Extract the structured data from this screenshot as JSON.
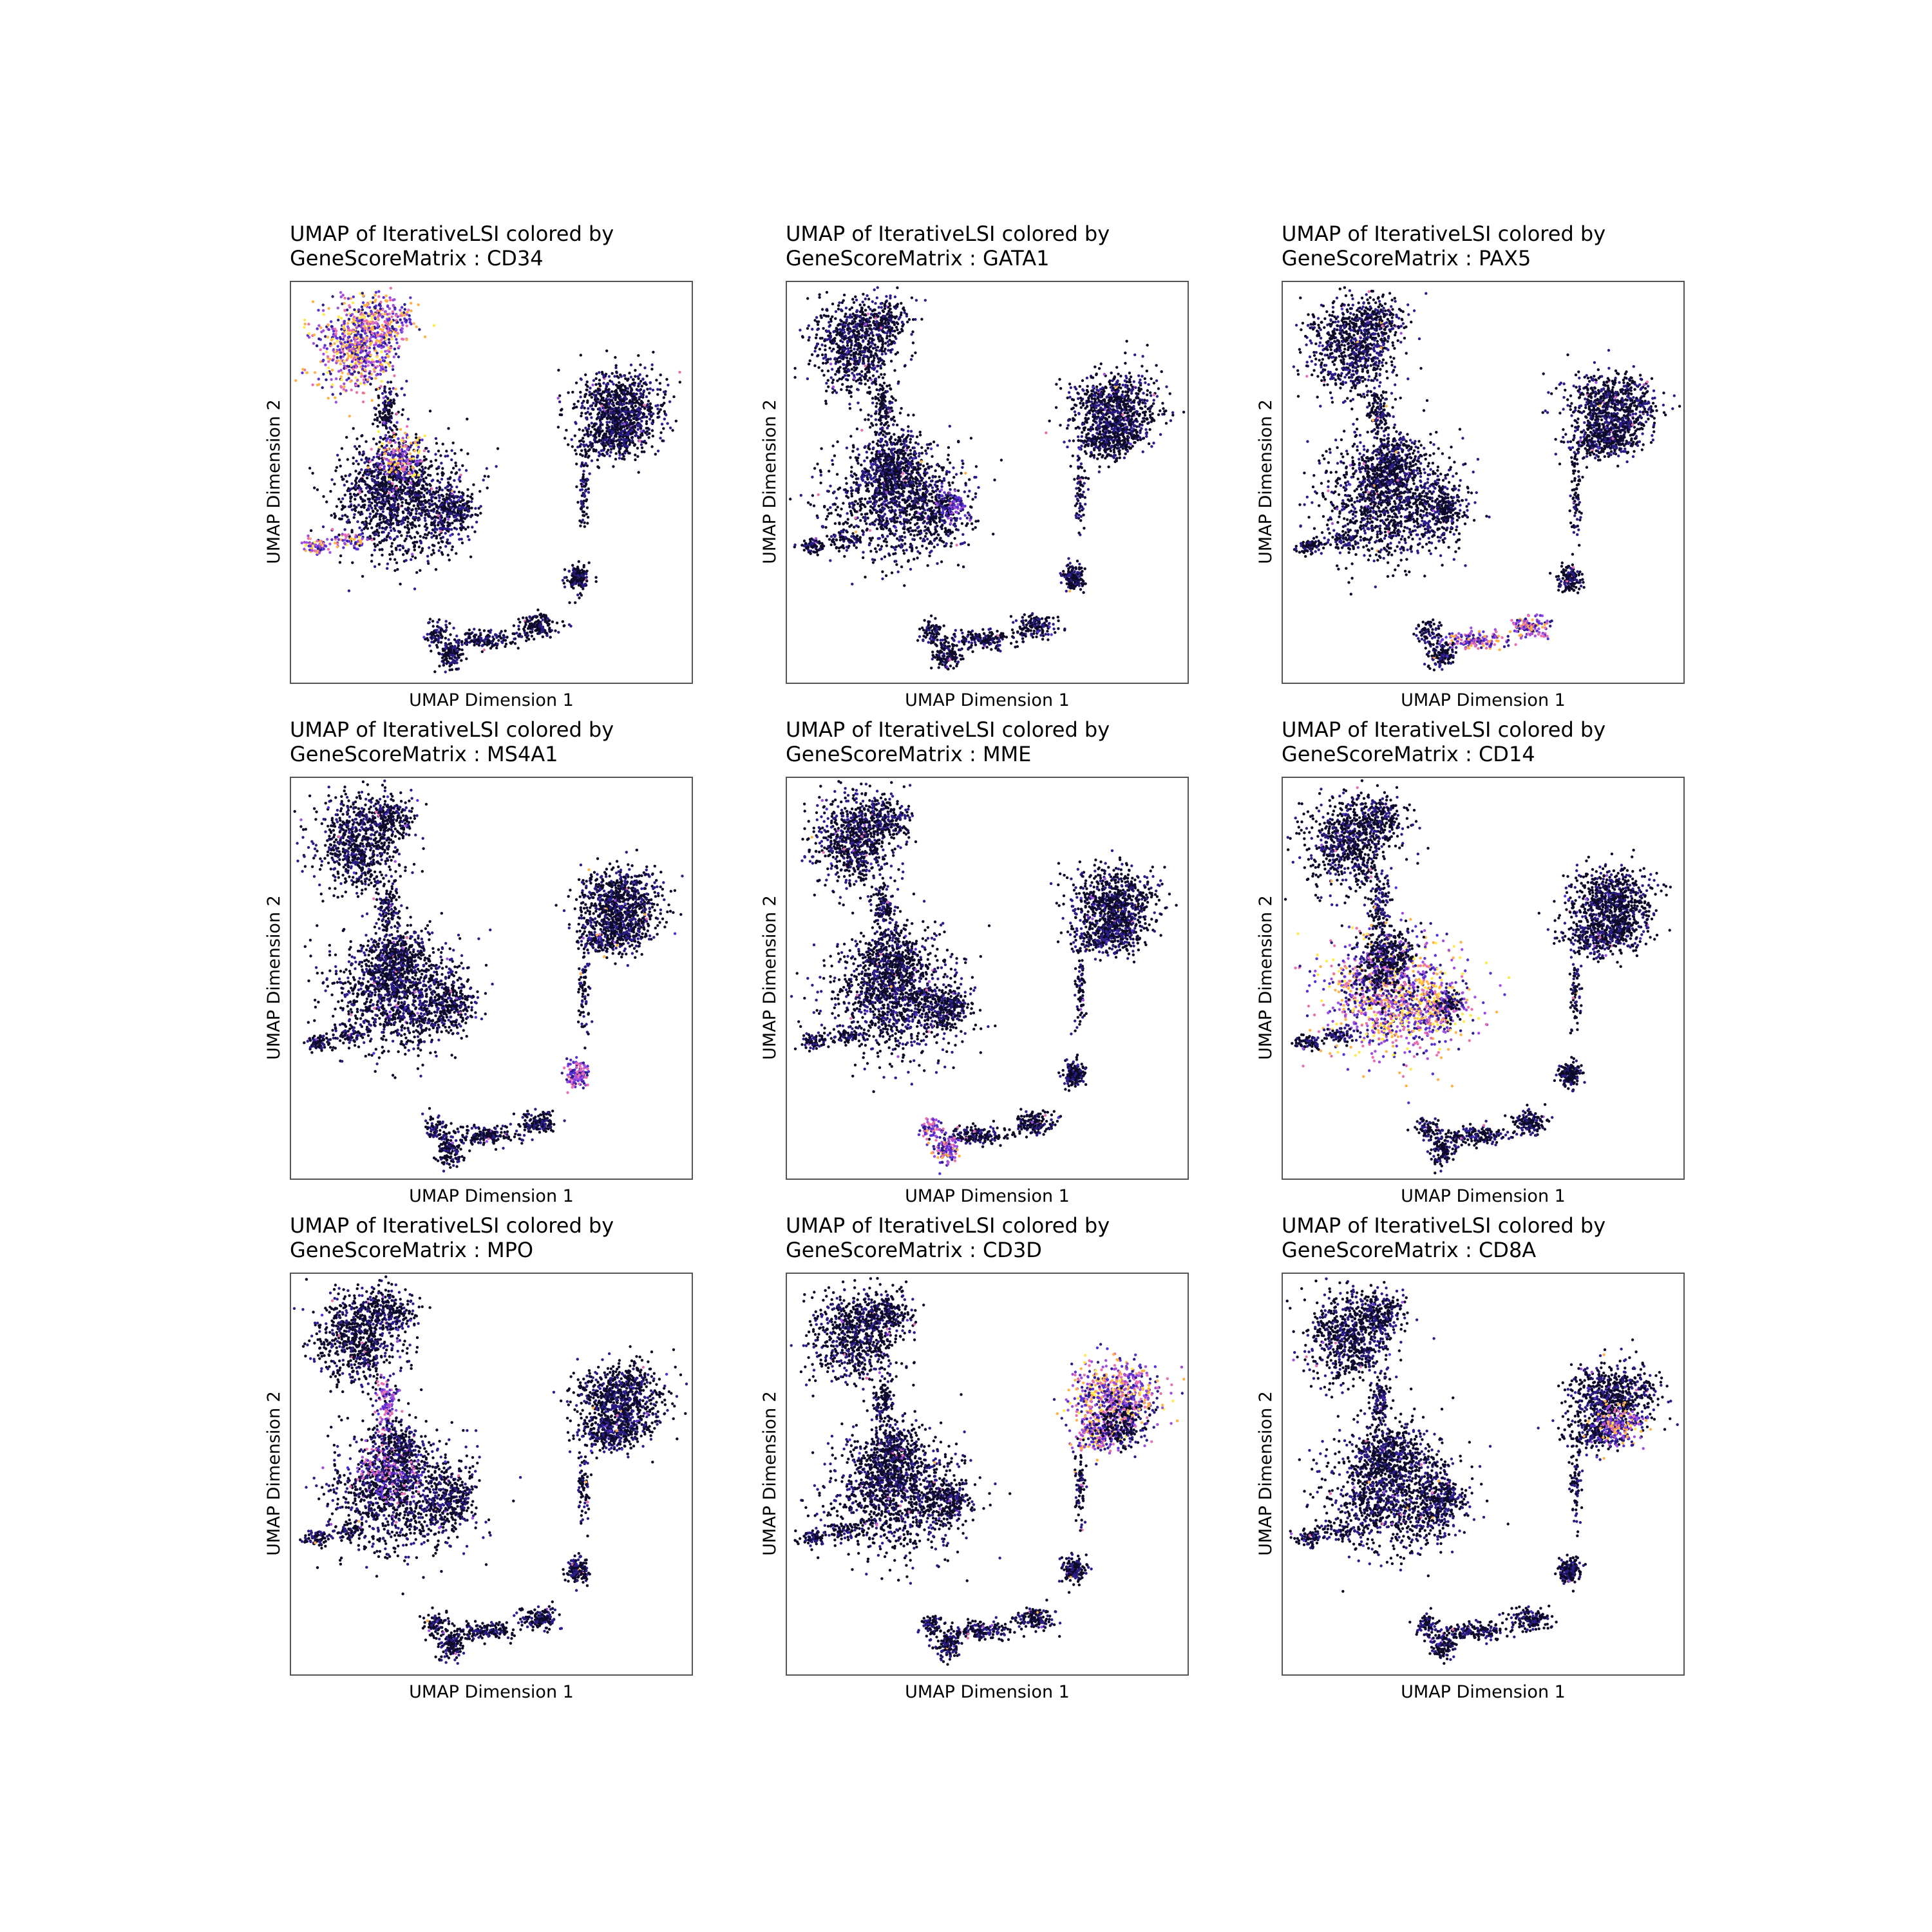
{
  "chart_data": {
    "type": "scatter",
    "title_line1": "UMAP of IterativeLSI colored by",
    "xlabel": "UMAP Dimension 1",
    "ylabel": "UMAP Dimension 2",
    "colormap": [
      "#0d0a29",
      "#2b1c8a",
      "#5a2fd6",
      "#a04ee0",
      "#e86fb0",
      "#ffb347",
      "#ffe94d"
    ],
    "background_color": "#ffffff",
    "grid": false,
    "legend": "none",
    "panels": [
      {
        "name": "CD34",
        "title_line2": "GeneScoreMatrix : CD34",
        "high_clusters": [
          "progenitor",
          "left-small",
          "junction"
        ],
        "high_level": 0.55
      },
      {
        "name": "GATA1",
        "title_line2": "GeneScoreMatrix : GATA1",
        "high_clusters": [
          "erythroid-tip"
        ],
        "high_level": 0.15
      },
      {
        "name": "PAX5",
        "title_line2": "GeneScoreMatrix : PAX5",
        "high_clusters": [
          "b-cells"
        ],
        "high_level": 0.45
      },
      {
        "name": "MS4A1",
        "title_line2": "GeneScoreMatrix : MS4A1",
        "high_clusters": [
          "b-mature"
        ],
        "high_level": 0.3
      },
      {
        "name": "MME",
        "title_line2": "GeneScoreMatrix : MME",
        "high_clusters": [
          "b-early"
        ],
        "high_level": 0.35
      },
      {
        "name": "CD14",
        "title_line2": "GeneScoreMatrix : CD14",
        "high_clusters": [
          "myeloid"
        ],
        "high_level": 0.6
      },
      {
        "name": "MPO",
        "title_line2": "GeneScoreMatrix : MPO",
        "high_clusters": [
          "myeloid-low",
          "stem-stalk"
        ],
        "high_level": 0.3
      },
      {
        "name": "CD3D",
        "title_line2": "GeneScoreMatrix : CD3D",
        "high_clusters": [
          "t-cells"
        ],
        "high_level": 0.55
      },
      {
        "name": "CD8A",
        "title_line2": "GeneScoreMatrix : CD8A",
        "high_clusters": [
          "t-cd8"
        ],
        "high_level": 0.5
      }
    ]
  }
}
